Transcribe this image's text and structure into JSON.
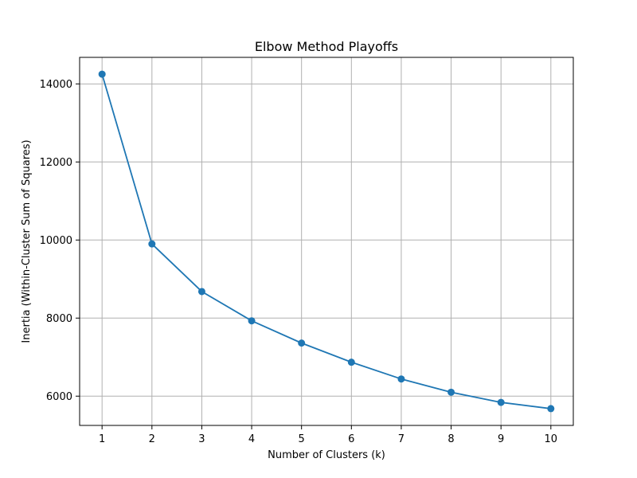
{
  "chart_data": {
    "type": "line",
    "title": "Elbow Method Playoffs",
    "xlabel": "Number of Clusters (k)",
    "ylabel": "Inertia (Within-Cluster Sum of Squares)",
    "x": [
      1,
      2,
      3,
      4,
      5,
      6,
      7,
      8,
      9,
      10
    ],
    "series": [
      {
        "values": [
          14250,
          9900,
          8680,
          7930,
          7360,
          6870,
          6440,
          6100,
          5840,
          5680
        ]
      }
    ],
    "x_ticks": [
      "1",
      "2",
      "3",
      "4",
      "5",
      "6",
      "7",
      "8",
      "9",
      "10"
    ],
    "y_ticks": [
      "6000",
      "8000",
      "10000",
      "12000",
      "14000"
    ],
    "xlim": [
      0.55,
      10.45
    ],
    "ylim": [
      5250,
      14680
    ],
    "grid": true,
    "marker": "circle",
    "colors": {
      "line": "#1f77b4",
      "grid": "#b0b0b0",
      "axis": "#000000"
    }
  }
}
